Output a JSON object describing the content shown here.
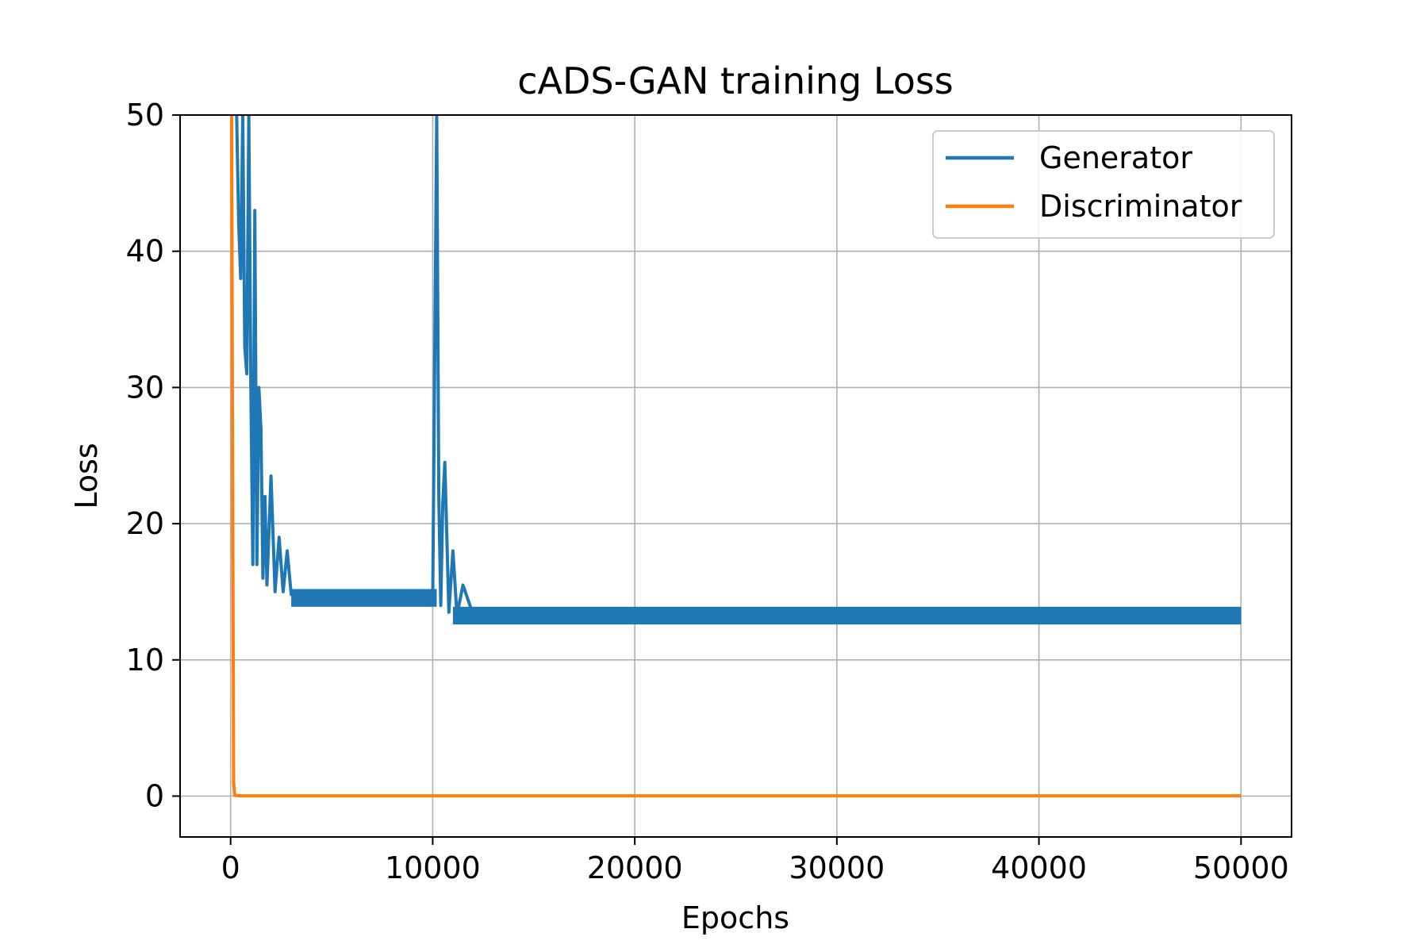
{
  "chart_data": {
    "type": "line",
    "title": "cADS-GAN training Loss",
    "xlabel": "Epochs",
    "ylabel": "Loss",
    "xlim": [
      -2500,
      52500
    ],
    "ylim": [
      -3,
      50
    ],
    "xticks": [
      0,
      10000,
      20000,
      30000,
      40000,
      50000
    ],
    "xtick_labels": [
      "0",
      "10000",
      "20000",
      "30000",
      "40000",
      "50000"
    ],
    "yticks": [
      0,
      10,
      20,
      30,
      40,
      50
    ],
    "ytick_labels": [
      "0",
      "10",
      "20",
      "30",
      "40",
      "50"
    ],
    "grid": true,
    "legend_position": "top-right",
    "series": [
      {
        "name": "Generator",
        "color": "#1f77b4",
        "x": [
          300,
          400,
          500,
          600,
          700,
          800,
          900,
          1000,
          1100,
          1200,
          1300,
          1400,
          1500,
          1600,
          1700,
          1800,
          2000,
          2200,
          2400,
          2600,
          2800,
          3000,
          3500,
          4000,
          5000,
          6000,
          7000,
          8000,
          9000,
          10000,
          10200,
          10300,
          10400,
          10500,
          10600,
          10800,
          11000,
          11200,
          11500,
          12000,
          13000,
          15000,
          20000,
          25000,
          30000,
          35000,
          40000,
          45000,
          50000
        ],
        "y": [
          50,
          42,
          38,
          50,
          33,
          31,
          50,
          30,
          17,
          43,
          17,
          30,
          27,
          16,
          22,
          15.5,
          23.5,
          15,
          19,
          15,
          18,
          14.8,
          14.8,
          14.5,
          14.7,
          14.5,
          14.5,
          14.4,
          14.3,
          14.2,
          50,
          22,
          14,
          21.5,
          24.5,
          13.5,
          18,
          13.3,
          15.5,
          13.3,
          13.2,
          13.2,
          13.2,
          13.2,
          13.2,
          13.2,
          13.2,
          13.2,
          13.2
        ]
      },
      {
        "name": "Discriminator",
        "color": "#ff7f0e",
        "x": [
          0,
          50,
          100,
          150,
          200,
          500,
          1000,
          5000,
          10000,
          20000,
          30000,
          40000,
          50000
        ],
        "y": [
          60,
          50,
          25,
          1,
          0.05,
          0.02,
          0.02,
          0.02,
          0.02,
          0.02,
          0.02,
          0.02,
          0.02
        ]
      }
    ]
  }
}
